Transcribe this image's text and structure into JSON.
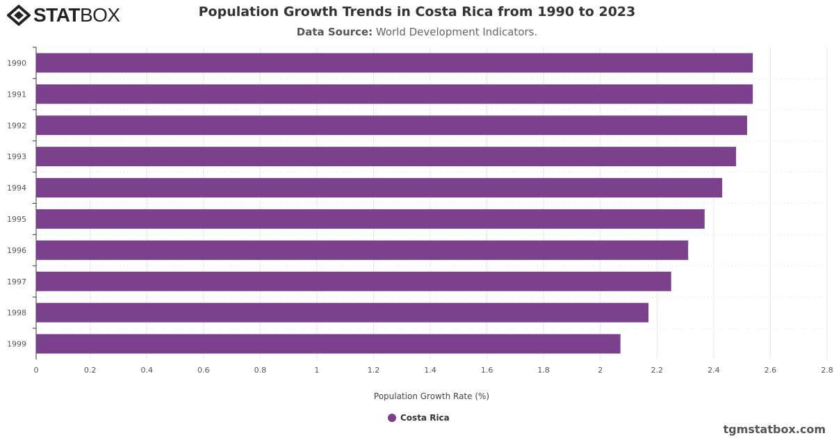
{
  "brand": {
    "logo": "STATBOX",
    "credit": "tgmstatbox.com"
  },
  "chart_data": {
    "type": "bar",
    "orientation": "horizontal",
    "title": "Population Growth Trends in Costa Rica from 1990 to 2023",
    "subtitle_label": "Data Source:",
    "subtitle_value": "World Development Indicators.",
    "categories": [
      "1990",
      "1991",
      "1992",
      "1993",
      "1994",
      "1995",
      "1996",
      "1997",
      "1998",
      "1999"
    ],
    "series": [
      {
        "name": "Costa Rica",
        "color": "#7b418c",
        "values": [
          2.538,
          2.538,
          2.518,
          2.479,
          2.43,
          2.368,
          2.31,
          2.25,
          2.17,
          2.071
        ]
      }
    ],
    "xlabel": "Population Growth Rate (%)",
    "xlim": [
      0,
      2.8
    ],
    "xticks": [
      "0",
      "0.2",
      "0.4",
      "0.6",
      "0.8",
      "1",
      "1.2",
      "1.4",
      "1.6",
      "1.8",
      "2",
      "2.2",
      "2.4",
      "2.6",
      "2.8"
    ],
    "grid": true,
    "legend": "bottom-center"
  }
}
